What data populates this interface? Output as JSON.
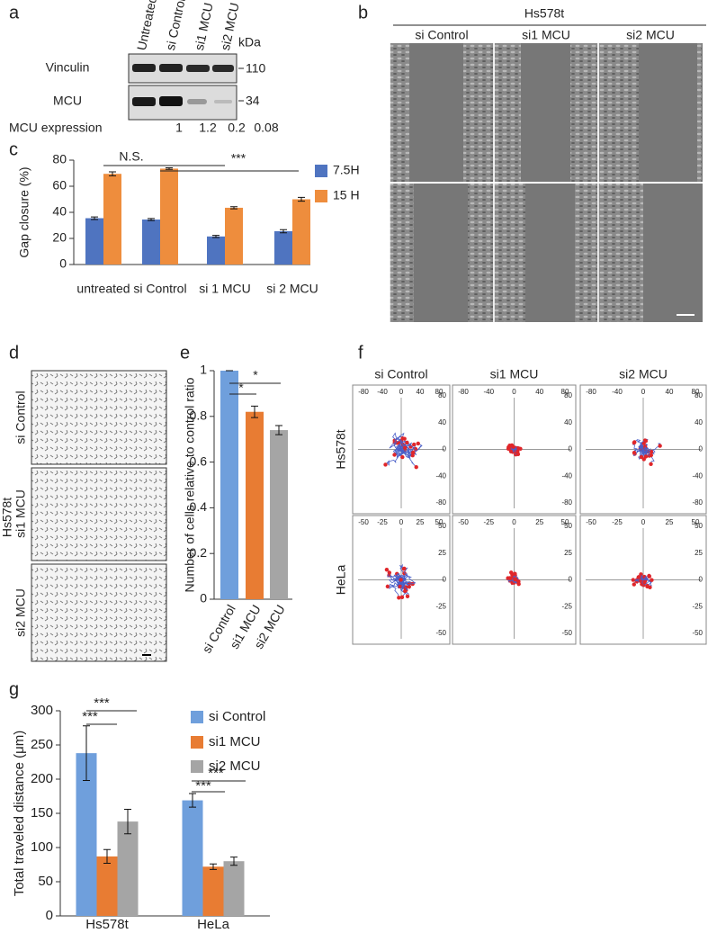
{
  "a": {
    "label": "a",
    "lanes": [
      "Untreated",
      "si Control",
      "si1 MCU",
      "si2 MCU"
    ],
    "unit": "kDa",
    "rows": [
      {
        "name": "Vinculin",
        "marker": 110
      },
      {
        "name": "MCU",
        "marker": 34
      }
    ],
    "expression_label": "MCU expression",
    "expression": [
      1,
      1.2,
      0.2,
      0.08
    ]
  },
  "b": {
    "label": "b",
    "cell_line": "Hs578t",
    "columns": [
      "si Control",
      "si1 MCU",
      "si2 MCU"
    ]
  },
  "d": {
    "label": "d",
    "cell_line": "Hs578t",
    "rows": [
      "si Control",
      "si1 MCU",
      "si2 MCU"
    ]
  },
  "f": {
    "label": "f",
    "columns": [
      "si Control",
      "si1 MCU",
      "si2 MCU"
    ],
    "rows": [
      {
        "name": "Hs578t",
        "xticks": [
          -80,
          -40,
          0,
          40,
          80
        ],
        "yticks": [
          80,
          40,
          0,
          -40,
          -80
        ]
      },
      {
        "name": "HeLa",
        "xticks": [
          -50,
          -25,
          0,
          25,
          50
        ],
        "yticks": [
          50,
          25,
          0,
          -25,
          -50
        ]
      }
    ]
  },
  "chart_data": [
    {
      "label": "c",
      "type": "bar",
      "categories": [
        "untreated",
        "si Control",
        "si 1 MCU",
        "si 2 MCU"
      ],
      "series": [
        {
          "name": "7.5H",
          "color": "#4f74c0",
          "values": [
            35.5,
            34.5,
            21.5,
            25.5
          ],
          "errors": [
            1,
            0.8,
            0.8,
            1.2
          ]
        },
        {
          "name": "15 H",
          "color": "#ee8d3d",
          "values": [
            69.5,
            73.5,
            43.5,
            50
          ],
          "errors": [
            1.5,
            0.6,
            0.8,
            1.5
          ]
        }
      ],
      "ylabel": "Gap closure (%)",
      "ylim": [
        0,
        80
      ],
      "yticks": [
        0,
        20,
        40,
        60,
        80
      ],
      "annotations": [
        "N.S.",
        "***"
      ],
      "legend": "right"
    },
    {
      "label": "e",
      "type": "bar",
      "categories": [
        "si Control",
        "si1 MCU",
        "si2 MCU"
      ],
      "values": [
        1,
        0.82,
        0.74
      ],
      "errors": [
        0,
        0.025,
        0.02
      ],
      "colors": [
        "#6f9fdc",
        "#e87c33",
        "#a5a5a5"
      ],
      "ylabel": "Number of cells relative to control ratio",
      "ylim": [
        0,
        1
      ],
      "yticks": [
        0,
        0.2,
        0.4,
        0.6,
        0.8,
        1
      ],
      "annotations": [
        "*",
        "*"
      ]
    },
    {
      "label": "g",
      "type": "bar",
      "categories": [
        "Hs578t",
        "HeLa"
      ],
      "series": [
        {
          "name": "si Control",
          "color": "#6f9fdc",
          "values": [
            238,
            169
          ],
          "errors": [
            40,
            10
          ]
        },
        {
          "name": "si1 MCU",
          "color": "#e87c33",
          "values": [
            87,
            72
          ],
          "errors": [
            10,
            4
          ]
        },
        {
          "name": "si2 MCU",
          "color": "#a5a5a5",
          "values": [
            138,
            80
          ],
          "errors": [
            18,
            6
          ]
        }
      ],
      "ylabel": "Total traveled distance (μm)",
      "ylim": [
        0,
        300
      ],
      "yticks": [
        0,
        50,
        100,
        150,
        200,
        250,
        300
      ],
      "annotations": [
        "***",
        "***",
        "***",
        "***"
      ],
      "legend": "right"
    }
  ]
}
